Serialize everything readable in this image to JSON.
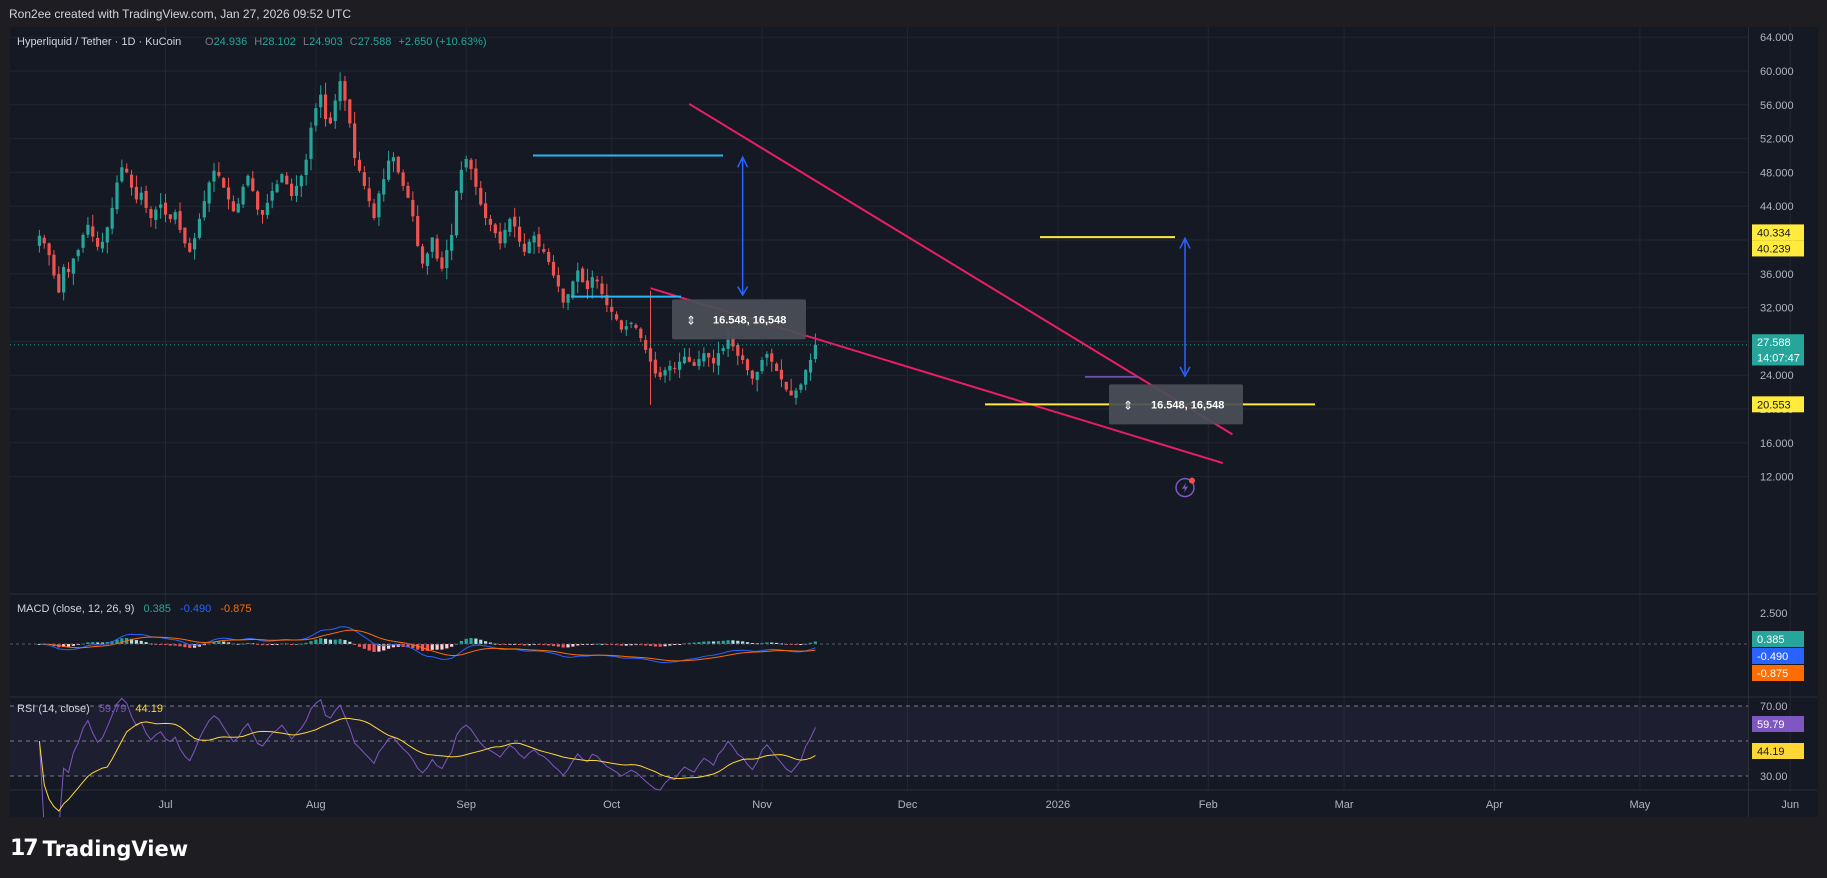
{
  "header": {
    "attribution": "Ron2ee created with TradingView.com, Jan 27, 2026 09:52 UTC"
  },
  "footer": {
    "brand": "TradingView"
  },
  "colors": {
    "up": "#26a69a",
    "down": "#ef5350",
    "wedge": "#e91e63",
    "target": "#ffeb3b",
    "measure": "#2962ff",
    "macd": "#2962ff",
    "signal": "#ff6d00",
    "rsi": "#7e57c2",
    "rsi_ma": "#fdd835"
  },
  "chart_data": [
    {
      "type": "candlestick",
      "title": "Hyperliquid / Tether · 1D · KuCoin",
      "ohlc": {
        "O": "24.936",
        "H": "28.102",
        "L": "24.903",
        "C": "27.588",
        "chg": "+2.650 (+10.63%)"
      },
      "ylim": [
        10,
        64
      ],
      "y_ticks": [
        "64.000",
        "60.000",
        "56.000",
        "52.000",
        "48.000",
        "44.000",
        "40.000",
        "36.000",
        "32.000",
        "28.000",
        "24.000",
        "20.000",
        "16.000",
        "12.000"
      ],
      "x_ticks": [
        "Jul",
        "Aug",
        "Sep",
        "Oct",
        "Nov",
        "Dec",
        "2026",
        "Feb",
        "Mar",
        "Apr",
        "May",
        "Jun"
      ],
      "grid": true,
      "closes": [
        40.5,
        39.6,
        38.2,
        35.8,
        33.8,
        36.8,
        36.2,
        37.8,
        38.8,
        40.6,
        41.8,
        40.4,
        39.2,
        39.8,
        41.5,
        43.8,
        46.8,
        48.6,
        48.0,
        46.2,
        44.8,
        45.6,
        43.8,
        42.6,
        43.6,
        44.2,
        43.0,
        42.5,
        43.3,
        41.2,
        39.6,
        38.6,
        40.2,
        42.5,
        44.6,
        46.8,
        48.2,
        47.6,
        46.2,
        44.8,
        43.4,
        44.3,
        46.3,
        47.6,
        45.8,
        43.6,
        43.0,
        44.4,
        45.8,
        46.6,
        47.8,
        46.6,
        45.2,
        46.4,
        47.6,
        49.5,
        53.3,
        55.6,
        57.2,
        54.3,
        53.8,
        56.5,
        58.8,
        56.5,
        53.8,
        49.7,
        48.2,
        46.4,
        44.6,
        42.6,
        45.5,
        47.2,
        49.4,
        49.8,
        48.0,
        46.4,
        45.0,
        42.8,
        39.3,
        37.2,
        38.4,
        40.3,
        37.8,
        36.6,
        38.8,
        40.6,
        45.8,
        48.3,
        49.6,
        48.4,
        46.3,
        44.2,
        42.6,
        41.8,
        40.8,
        39.6,
        41.2,
        42.5,
        41.6,
        39.8,
        38.6,
        39.8,
        40.5,
        39.2,
        38.6,
        37.4,
        35.8,
        34.5,
        32.6,
        33.6,
        35.1,
        36.4,
        35.0,
        34.2,
        35.6,
        35.1,
        33.6,
        32.3,
        31.5,
        30.6,
        29.4,
        29.8,
        30.2,
        29.6,
        28.4,
        27.0,
        25.6,
        24.2,
        23.8,
        24.6,
        25.1,
        24.8,
        25.6,
        26.2,
        25.6,
        25.1,
        25.9,
        26.6,
        26.1,
        25.4,
        26.6,
        27.2,
        28.2,
        27.4,
        26.3,
        25.8,
        24.6,
        23.6,
        24.4,
        25.8,
        26.5,
        25.6,
        24.5,
        23.5,
        22.3,
        21.6,
        22.2,
        22.9,
        24.6,
        25.8,
        27.6
      ],
      "series": [
        {
          "name": "Falling wedge upper",
          "points": [
            [
              "2025-10-17",
              56.1
            ],
            [
              "2026-02-06",
              17.0
            ]
          ]
        },
        {
          "name": "Falling wedge lower",
          "points": [
            [
              "2025-10-09",
              34.3
            ],
            [
              "2026-02-04",
              13.6
            ]
          ]
        }
      ],
      "annotations": [
        {
          "text": "16.548, 16,548",
          "type": "price-range",
          "from": 33.3,
          "to": 49.9
        },
        {
          "text": "16.548, 16,548",
          "type": "price-range",
          "from": 23.8,
          "to": 40.3
        },
        {
          "type": "level",
          "value": 40.334
        },
        {
          "type": "level",
          "value": 20.553
        }
      ],
      "price_labels": [
        {
          "value": "40.334",
          "bg": "#ffeb3b",
          "fg": "#131722"
        },
        {
          "value": "40.239",
          "bg": "#ffeb3b",
          "fg": "#131722"
        },
        {
          "value": "27.588",
          "bg": "#26a69a",
          "fg": "#ffffff"
        },
        {
          "value": "14:07:47",
          "bg": "#26a69a",
          "fg": "#ffffff"
        },
        {
          "value": "20.553",
          "bg": "#ffeb3b",
          "fg": "#131722"
        }
      ]
    },
    {
      "type": "line",
      "title": "MACD (close, 12, 26, 9)",
      "values_text": [
        "0.385",
        "-0.490",
        "-0.875"
      ],
      "y_ticks": [
        "2.500"
      ],
      "series_names": [
        "MACD",
        "Signal",
        "Histogram"
      ],
      "price_labels": [
        {
          "value": "0.385",
          "bg": "#26a69a",
          "fg": "#ffffff"
        },
        {
          "value": "-0.490",
          "bg": "#2962ff",
          "fg": "#ffffff"
        },
        {
          "value": "-0.875",
          "bg": "#ff6d00",
          "fg": "#ffffff"
        }
      ]
    },
    {
      "type": "line",
      "title": "RSI (14, close)",
      "values_text": [
        "59.79",
        "44.19"
      ],
      "y_ticks": [
        "70.00",
        "30.00"
      ],
      "ylim": [
        0,
        100
      ],
      "price_labels": [
        {
          "value": "59.79",
          "bg": "#7e57c2",
          "fg": "#ffffff"
        },
        {
          "value": "44.19",
          "bg": "#fdd835",
          "fg": "#131722"
        }
      ]
    }
  ]
}
